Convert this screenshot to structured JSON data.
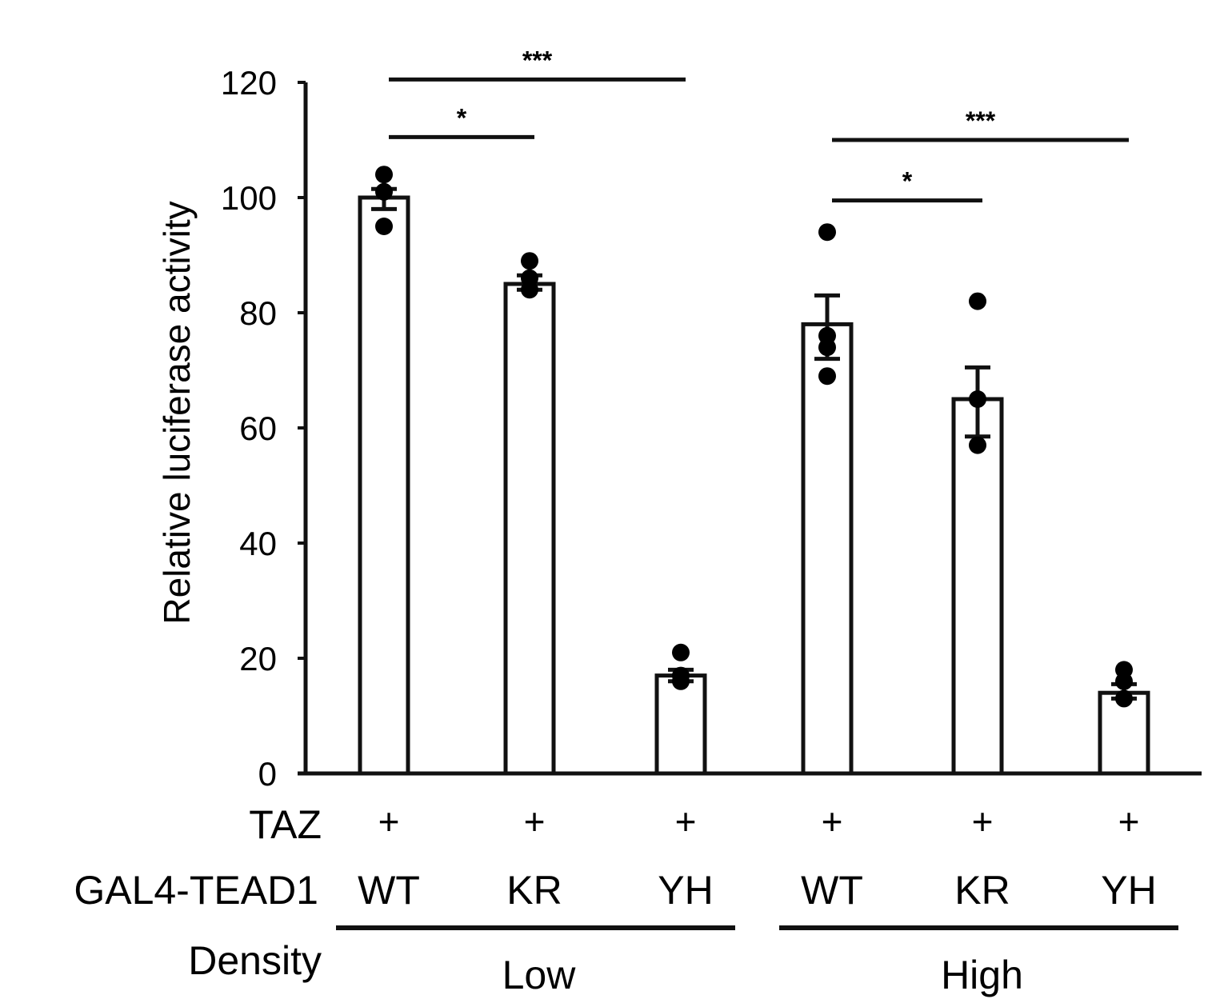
{
  "chart_data": {
    "type": "bar",
    "ylabel": "Relative luciferase activity",
    "ylim": [
      0,
      120
    ],
    "yticks": [
      0,
      20,
      40,
      60,
      80,
      100,
      120
    ],
    "grid": false,
    "legend": "none",
    "colors": {
      "bar_fill": "#ffffff",
      "bar_stroke": "#111111",
      "point": "#000000"
    },
    "row_labels": {
      "taz": "TAZ",
      "gal4": "GAL4-TEAD1",
      "density": "Density"
    },
    "bars": [
      {
        "taz": "+",
        "variant": "WT",
        "density": "Low",
        "mean": 100,
        "sem_low": 98,
        "sem_high": 101.5,
        "points": [
          104,
          101,
          95
        ]
      },
      {
        "taz": "+",
        "variant": "KR",
        "density": "Low",
        "mean": 85,
        "sem_low": 84,
        "sem_high": 86.5,
        "points": [
          89,
          86,
          84
        ]
      },
      {
        "taz": "+",
        "variant": "YH",
        "density": "Low",
        "mean": 17,
        "sem_low": 16,
        "sem_high": 18,
        "points": [
          21,
          17,
          16
        ]
      },
      {
        "taz": "+",
        "variant": "WT",
        "density": "High",
        "mean": 78,
        "sem_low": 72,
        "sem_high": 83,
        "points": [
          94,
          76,
          74,
          69
        ]
      },
      {
        "taz": "+",
        "variant": "KR",
        "density": "High",
        "mean": 65,
        "sem_low": 58.5,
        "sem_high": 70.5,
        "points": [
          82,
          65,
          57
        ]
      },
      {
        "taz": "+",
        "variant": "YH",
        "density": "High",
        "mean": 14,
        "sem_low": 13,
        "sem_high": 15.5,
        "points": [
          18,
          16,
          13
        ]
      }
    ],
    "groups": [
      {
        "label": "Low",
        "from_bar": 0,
        "to_bar": 2
      },
      {
        "label": "High",
        "from_bar": 3,
        "to_bar": 5
      }
    ],
    "significance": [
      {
        "from_bar": 0,
        "to_bar": 2,
        "y": 120.5,
        "label": "***"
      },
      {
        "from_bar": 0,
        "to_bar": 1,
        "y": 110.5,
        "label": "*"
      },
      {
        "from_bar": 3,
        "to_bar": 5,
        "y": 110,
        "label": "***"
      },
      {
        "from_bar": 3,
        "to_bar": 4,
        "y": 99.5,
        "label": "*"
      }
    ]
  }
}
